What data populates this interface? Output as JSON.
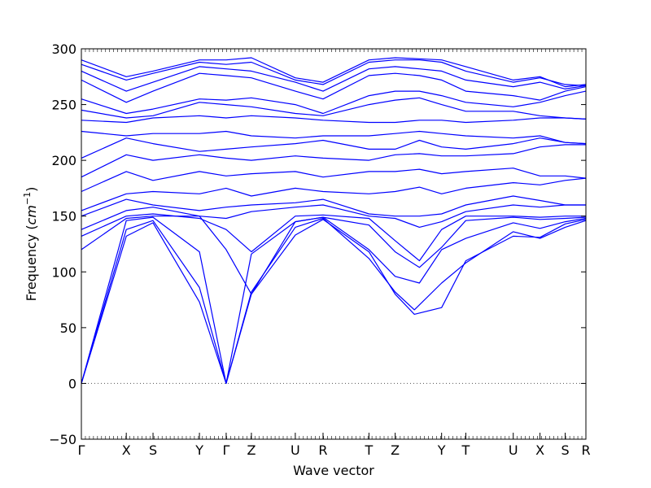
{
  "chart_data": {
    "type": "line",
    "title": "",
    "xlabel": "Wave vector",
    "ylabel_prefix": "Frequency (",
    "ylabel_unit_base": "cm",
    "ylabel_unit_exp": "−1",
    "ylabel_suffix": ")",
    "ylim": [
      -50,
      300
    ],
    "yticks": [
      -50,
      0,
      50,
      100,
      150,
      200,
      250,
      300
    ],
    "xlim": [
      0,
      100
    ],
    "grid": false,
    "legend": "none",
    "line_color": "#0000ff",
    "zero_line_color": "#555555",
    "high_symmetry_points": [
      {
        "label": "Γ",
        "x": 0
      },
      {
        "label": "X",
        "x": 8.9
      },
      {
        "label": "S",
        "x": 14.2
      },
      {
        "label": "Y",
        "x": 23.4
      },
      {
        "label": "Γ",
        "x": 28.7
      },
      {
        "label": "Z",
        "x": 33.7
      },
      {
        "label": "U",
        "x": 42.4
      },
      {
        "label": "R",
        "x": 47.9
      },
      {
        "label": "T",
        "x": 57.0
      },
      {
        "label": "Z",
        "x": 62.2
      },
      {
        "label": "Y",
        "x": 71.4
      },
      {
        "label": "T",
        "x": 76.2
      },
      {
        "label": "U",
        "x": 85.6
      },
      {
        "label": "X",
        "x": 90.9
      },
      {
        "label": "S",
        "x": 95.9
      },
      {
        "label": "R",
        "x": 100
      }
    ],
    "series": [
      {
        "x": [
          0,
          8.9,
          14.2,
          23.4,
          28.7,
          33.7,
          42.4,
          47.9,
          57,
          62.2,
          66,
          71.4,
          76.2,
          85.6,
          90.9,
          95.9,
          100
        ],
        "y": [
          0,
          132,
          144,
          73,
          0,
          80,
          133,
          147,
          118,
          80,
          62,
          68,
          110,
          132,
          131,
          143,
          147
        ]
      },
      {
        "x": [
          0,
          8.9,
          14.2,
          23.4,
          28.7,
          33.7,
          42.4,
          47.9,
          57,
          62.2,
          66,
          71.4,
          76.2,
          85.6,
          90.9,
          95.9,
          100
        ],
        "y": [
          0,
          138,
          146,
          86,
          0,
          82,
          140,
          148,
          112,
          82,
          66,
          90,
          108,
          136,
          130,
          140,
          146
        ]
      },
      {
        "x": [
          0,
          8.9,
          14.2,
          23.4,
          28.7,
          33.7,
          42.4,
          47.9,
          57,
          62.2,
          67,
          71.4,
          76.2,
          85.6,
          90.9,
          95.9,
          100
        ],
        "y": [
          0,
          146,
          149,
          118,
          0,
          116,
          145,
          149,
          120,
          96,
          90,
          120,
          130,
          144,
          139,
          145,
          148
        ]
      },
      {
        "x": [
          0,
          8.9,
          14.2,
          23.4,
          28.7,
          33.7,
          42.4,
          47.9,
          57,
          62.2,
          67,
          71.4,
          76.2,
          85.6,
          90.9,
          95.9,
          100
        ],
        "y": [
          120,
          148,
          150,
          150,
          120,
          80,
          145,
          149,
          142,
          118,
          104,
          122,
          146,
          149,
          147,
          148,
          149
        ]
      },
      {
        "x": [
          0,
          8.9,
          14.2,
          23.4,
          28.7,
          33.7,
          42.4,
          47.9,
          57,
          62.2,
          67,
          71.4,
          76.2,
          85.6,
          90.9,
          95.9,
          100
        ],
        "y": [
          132,
          150,
          152,
          148,
          138,
          118,
          150,
          151,
          148,
          128,
          110,
          138,
          150,
          150,
          149,
          150,
          150
        ]
      },
      {
        "x": [
          0,
          8.9,
          14.2,
          23.4,
          28.7,
          33.7,
          42.4,
          47.9,
          57,
          62.2,
          67,
          71.4,
          76.2,
          85.6,
          90.9,
          95.9,
          100
        ],
        "y": [
          138,
          155,
          158,
          150,
          148,
          154,
          158,
          160,
          150,
          148,
          140,
          145,
          154,
          160,
          158,
          160,
          160
        ]
      },
      {
        "x": [
          0,
          8.9,
          14.2,
          23.4,
          28.7,
          33.7,
          42.4,
          47.9,
          57,
          62.2,
          67,
          71.4,
          76.2,
          85.6,
          90.9,
          95.9,
          100
        ],
        "y": [
          150,
          165,
          160,
          155,
          158,
          160,
          162,
          165,
          152,
          150,
          150,
          152,
          160,
          168,
          164,
          160,
          160
        ]
      },
      {
        "x": [
          0,
          8.9,
          14.2,
          23.4,
          28.7,
          33.7,
          42.4,
          47.9,
          57,
          62.2,
          67,
          71.4,
          76.2,
          85.6,
          90.9,
          95.9,
          100
        ],
        "y": [
          155,
          170,
          172,
          170,
          175,
          168,
          175,
          172,
          170,
          172,
          176,
          170,
          175,
          180,
          178,
          182,
          184
        ]
      },
      {
        "x": [
          0,
          8.9,
          14.2,
          23.4,
          28.7,
          33.7,
          42.4,
          47.9,
          57,
          62.2,
          67,
          71.4,
          76.2,
          85.6,
          90.9,
          95.9,
          100
        ],
        "y": [
          172,
          190,
          182,
          190,
          186,
          188,
          190,
          185,
          190,
          190,
          192,
          188,
          190,
          193,
          186,
          186,
          184
        ]
      },
      {
        "x": [
          0,
          8.9,
          14.2,
          23.4,
          28.7,
          33.7,
          42.4,
          47.9,
          57,
          62.2,
          67,
          71.4,
          76.2,
          85.6,
          90.9,
          95.9,
          100
        ],
        "y": [
          185,
          205,
          200,
          205,
          202,
          200,
          204,
          202,
          200,
          205,
          206,
          204,
          204,
          206,
          212,
          214,
          214
        ]
      },
      {
        "x": [
          0,
          8.9,
          14.2,
          23.4,
          28.7,
          33.7,
          42.4,
          47.9,
          57,
          62.2,
          67,
          71.4,
          76.2,
          85.6,
          90.9,
          95.9,
          100
        ],
        "y": [
          202,
          220,
          215,
          208,
          210,
          212,
          215,
          218,
          210,
          210,
          218,
          212,
          210,
          215,
          220,
          216,
          215
        ]
      },
      {
        "x": [
          0,
          8.9,
          14.2,
          23.4,
          28.7,
          33.7,
          42.4,
          47.9,
          57,
          62.2,
          67,
          71.4,
          76.2,
          85.6,
          90.9,
          95.9,
          100
        ],
        "y": [
          226,
          222,
          224,
          224,
          226,
          222,
          220,
          222,
          222,
          224,
          226,
          224,
          222,
          220,
          222,
          216,
          215
        ]
      },
      {
        "x": [
          0,
          8.9,
          14.2,
          23.4,
          28.7,
          33.7,
          42.4,
          47.9,
          57,
          62.2,
          67,
          71.4,
          76.2,
          85.6,
          90.9,
          95.9,
          100
        ],
        "y": [
          236,
          234,
          238,
          240,
          238,
          240,
          238,
          236,
          234,
          234,
          236,
          236,
          234,
          236,
          238,
          238,
          237
        ]
      },
      {
        "x": [
          0,
          8.9,
          14.2,
          23.4,
          28.7,
          33.7,
          42.4,
          47.9,
          57,
          62.2,
          67,
          71.4,
          76.2,
          85.6,
          90.9,
          95.9,
          100
        ],
        "y": [
          245,
          238,
          240,
          252,
          250,
          248,
          242,
          240,
          250,
          254,
          256,
          250,
          244,
          244,
          240,
          238,
          237
        ]
      },
      {
        "x": [
          0,
          8.9,
          14.2,
          23.4,
          28.7,
          33.7,
          42.4,
          47.9,
          57,
          62.2,
          67,
          71.4,
          76.2,
          85.6,
          90.9,
          95.9,
          100
        ],
        "y": [
          255,
          242,
          246,
          255,
          254,
          256,
          250,
          242,
          258,
          262,
          262,
          258,
          252,
          248,
          252,
          258,
          262
        ]
      },
      {
        "x": [
          0,
          8.9,
          14.2,
          23.4,
          28.7,
          33.7,
          42.4,
          47.9,
          57,
          62.2,
          67,
          71.4,
          76.2,
          85.6,
          90.9,
          95.9,
          100
        ],
        "y": [
          272,
          252,
          262,
          278,
          276,
          274,
          262,
          255,
          276,
          278,
          276,
          272,
          262,
          258,
          254,
          262,
          266
        ]
      },
      {
        "x": [
          0,
          8.9,
          14.2,
          23.4,
          28.7,
          33.7,
          42.4,
          47.9,
          57,
          62.2,
          67,
          71.4,
          76.2,
          85.6,
          90.9,
          95.9,
          100
        ],
        "y": [
          280,
          262,
          270,
          284,
          282,
          280,
          270,
          262,
          282,
          284,
          282,
          280,
          272,
          266,
          270,
          264,
          267
        ]
      },
      {
        "x": [
          0,
          8.9,
          14.2,
          23.4,
          28.7,
          33.7,
          42.4,
          47.9,
          57,
          62.2,
          67,
          71.4,
          76.2,
          85.6,
          90.9,
          95.9,
          100
        ],
        "y": [
          286,
          272,
          278,
          288,
          286,
          288,
          272,
          268,
          288,
          290,
          290,
          288,
          280,
          270,
          274,
          268,
          267
        ]
      },
      {
        "x": [
          0,
          8.9,
          14.2,
          23.4,
          28.7,
          33.7,
          42.4,
          47.9,
          57,
          62.2,
          67,
          71.4,
          76.2,
          85.6,
          90.9,
          95.9,
          100
        ],
        "y": [
          290,
          275,
          280,
          290,
          290,
          292,
          274,
          270,
          290,
          292,
          291,
          290,
          284,
          272,
          275,
          266,
          268
        ]
      }
    ]
  }
}
